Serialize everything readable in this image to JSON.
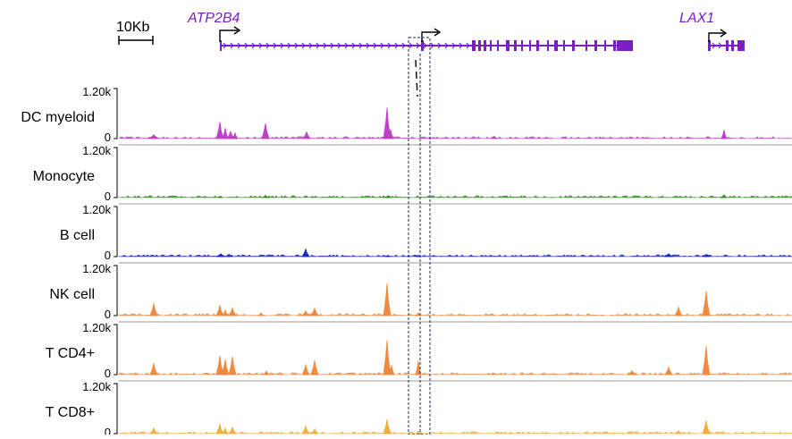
{
  "scale_bar": {
    "label": "10Kb"
  },
  "genes": [
    {
      "name": "ATP2B4",
      "color": "#7a1fc4"
    },
    {
      "name": "LAX1",
      "color": "#7a1fc4"
    }
  ],
  "tracks": [
    {
      "name": "DC myeloid",
      "max_label": "1.20k",
      "min_label": "0",
      "color": "#c040c8"
    },
    {
      "name": "Monocyte",
      "max_label": "1.20k",
      "min_label": "0",
      "color": "#2e8b1e"
    },
    {
      "name": "B cell",
      "max_label": "1.20k",
      "min_label": "0",
      "color": "#1a28c8"
    },
    {
      "name": "NK cell",
      "max_label": "1.20k",
      "min_label": "0",
      "color": "#f08a40"
    },
    {
      "name": "T CD4+",
      "max_label": "1.20k",
      "min_label": "0",
      "color": "#f08a40"
    },
    {
      "name": "T CD8+",
      "max_label": "1.20k",
      "min_label": "0",
      "color": "#f0b040"
    }
  ]
}
